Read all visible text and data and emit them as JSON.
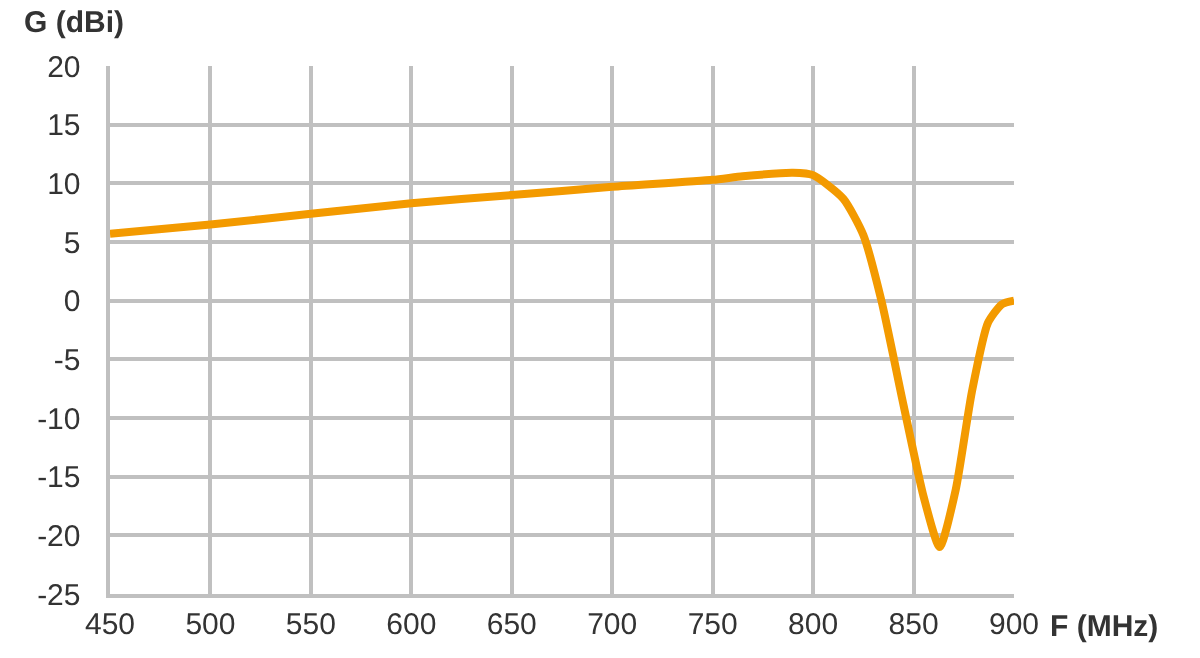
{
  "chart_data": {
    "type": "line",
    "xlabel": "F (MHz)",
    "ylabel": "G (dBi)",
    "series": [
      {
        "color": "#f39a00",
        "x": [
          450,
          500,
          550,
          600,
          650,
          700,
          750,
          765,
          790,
          800,
          815,
          825,
          834,
          845,
          855,
          863,
          871,
          879,
          887,
          894,
          900
        ],
        "values": [
          5.7,
          6.5,
          7.4,
          8.3,
          9.0,
          9.7,
          10.3,
          10.6,
          10.9,
          10.7,
          8.7,
          5.6,
          0,
          -8.9,
          -16.7,
          -21,
          -16.1,
          -7.8,
          -1.9,
          -0.3,
          0
        ]
      }
    ],
    "xlim": [
      450,
      900
    ],
    "xticks": [
      450,
      500,
      550,
      600,
      650,
      700,
      750,
      800,
      850,
      900
    ],
    "ylim": [
      -25,
      20
    ],
    "yticks": [
      -25,
      -20,
      -15,
      -10,
      -5,
      0,
      5,
      10,
      15,
      20
    ],
    "grid": true,
    "marker": "none",
    "line_style": "solid"
  }
}
